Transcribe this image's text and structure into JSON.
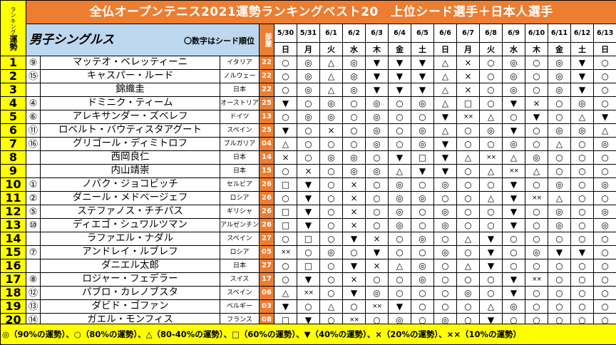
{
  "title": "全仏オープンテニス2021運勢ランキングベスト20　上位シード選手＋日本人選手",
  "rank_header": {
    "small": "ランキング",
    "big": "運勢"
  },
  "subtitle": "男子シングルス",
  "subtitle_note": "〇数字はシード順位",
  "room_header": "部屋",
  "dates": [
    "5/30",
    "5/31",
    "6/1",
    "6/2",
    "6/3",
    "6/4",
    "6/5",
    "6/6",
    "6/7",
    "6/8",
    "6/9",
    "6/10",
    "6/11",
    "6/12",
    "6/13"
  ],
  "weekdays": [
    "日",
    "月",
    "火",
    "水",
    "木",
    "金",
    "土",
    "日",
    "月",
    "火",
    "水",
    "木",
    "金",
    "土",
    "日"
  ],
  "players": [
    {
      "rank": "1",
      "seed": "⑨",
      "name": "マッテオ・ベレッティーニ",
      "country": "イタリア",
      "room": "22",
      "f": [
        "○",
        "◎",
        "△",
        "◎",
        "▼",
        "▼",
        "▼",
        "△",
        "×",
        "○",
        "◎",
        "○",
        "◎",
        "▼",
        "○"
      ]
    },
    {
      "rank": "2",
      "seed": "⑮",
      "name": "キャスパー・ルード",
      "country": "ノルウェー",
      "room": "22",
      "f": [
        "○",
        "◎",
        "△",
        "◎",
        "▼",
        "▼",
        "▼",
        "△",
        "×",
        "○",
        "◎",
        "○",
        "◎",
        "▼",
        "○"
      ]
    },
    {
      "rank": "3",
      "seed": "",
      "name": "錦織圭",
      "country": "日本",
      "room": "22",
      "f": [
        "○",
        "◎",
        "△",
        "◎",
        "▼",
        "▼",
        "▼",
        "△",
        "×",
        "○",
        "◎",
        "○",
        "◎",
        "▼",
        "○"
      ]
    },
    {
      "rank": "4",
      "seed": "④",
      "name": "ドミニク・ティーム",
      "country": "オーストリア",
      "room": "25",
      "f": [
        "▼",
        "○",
        "◎",
        "○",
        "◎",
        "○",
        "◎",
        "△",
        "□",
        "○",
        "▼",
        "×",
        "○",
        "◎",
        "○"
      ]
    },
    {
      "rank": "5",
      "seed": "⑥",
      "name": "アレキサンダー・ズベレフ",
      "country": "ドイツ",
      "room": "13",
      "f": [
        "○",
        "◎",
        "◎",
        "○",
        "◎",
        "○",
        "○",
        "▼",
        "××",
        "△",
        "○",
        "▼",
        "○",
        "△",
        "▼"
      ]
    },
    {
      "rank": "6",
      "seed": "⑪",
      "name": "ロベルト・バウティスタアグート",
      "country": "スペイン",
      "room": "25",
      "f": [
        "▼",
        "○",
        "×",
        "○",
        "◎",
        "○",
        "◎",
        "△",
        "○",
        "◎",
        "▼",
        "○",
        "◎",
        "◎",
        "△"
      ]
    },
    {
      "rank": "7",
      "seed": "⑯",
      "name": "グリゴール・ディミトロフ",
      "country": "ブルガリア",
      "room": "04",
      "f": [
        "△",
        "○",
        "○",
        "○",
        "◎",
        "○",
        "◎",
        "▼",
        "○",
        "○",
        "◎",
        "○",
        "△",
        "○",
        "◎"
      ]
    },
    {
      "rank": "8",
      "seed": "",
      "name": "西岡良仁",
      "country": "日本",
      "room": "14",
      "f": [
        "×",
        "○",
        "◎",
        "◎",
        "○",
        "▼",
        "□",
        "▼",
        "△",
        "××",
        "△",
        "◎",
        "○",
        "○",
        "○"
      ]
    },
    {
      "rank": "9",
      "seed": "",
      "name": "内山靖崇",
      "country": "日本",
      "room": "15",
      "f": [
        "○",
        "×",
        "○",
        "◎",
        "◎",
        "△",
        "▼",
        "▼",
        "○",
        "△",
        "××",
        "△",
        "○",
        "○",
        "○"
      ]
    },
    {
      "rank": "10",
      "seed": "①",
      "name": "ノバク・ジョコビッチ",
      "country": "セルビア",
      "room": "26",
      "f": [
        "□",
        "▼",
        "○",
        "×",
        "○",
        "◎",
        "○",
        "◎",
        "○",
        "○",
        "▼",
        "○",
        "◎",
        "○",
        "◎"
      ]
    },
    {
      "rank": "11",
      "seed": "②",
      "name": "ダニール・メドベージェフ",
      "country": "ロシア",
      "room": "26",
      "f": [
        "○",
        "▼",
        "○",
        "×",
        "○",
        "◎",
        "◎",
        "○",
        "○",
        "△",
        "▼",
        "××",
        "△",
        "○",
        "○"
      ]
    },
    {
      "rank": "12",
      "seed": "⑤",
      "name": "ステファノス・チチパス",
      "country": "ギリシャ",
      "room": "26",
      "f": [
        "□",
        "▼",
        "○",
        "×",
        "○",
        "◎",
        "○",
        "◎",
        "○",
        "○",
        "▼",
        "○",
        "◎",
        "○",
        "◎"
      ]
    },
    {
      "rank": "13",
      "seed": "⑩",
      "name": "ディエゴ・シュワルツマン",
      "country": "アルゼンチン",
      "room": "26",
      "f": [
        "□",
        "▼",
        "○",
        "×",
        "○",
        "◎",
        "○",
        "◎",
        "○",
        "○",
        "▼",
        "○",
        "◎",
        "○",
        "◎"
      ]
    },
    {
      "rank": "14",
      "seed": "",
      "name": "ラファエル・ナダル",
      "country": "スペイン",
      "room": "27",
      "f": [
        "○",
        "□",
        "○",
        "▼",
        "×",
        "○",
        "◎",
        "○",
        "△",
        "▼",
        "○",
        "○",
        "○",
        "○",
        "○"
      ]
    },
    {
      "rank": "15",
      "seed": "⑦",
      "name": "アンドレイ・ルブレフ",
      "country": "ロシア",
      "room": "05",
      "f": [
        "××",
        "○",
        "◎",
        "○",
        "▼",
        "○",
        "○",
        "◎",
        "○",
        "▼",
        "○",
        "◎",
        "▼",
        "▼",
        "○"
      ]
    },
    {
      "rank": "16",
      "seed": "",
      "name": "ダニエル太郎",
      "country": "日本",
      "room": "27",
      "f": [
        "○",
        "□",
        "○",
        "▼",
        "×",
        "△",
        "◎",
        "○",
        "△",
        "▼",
        "○",
        "○",
        "○",
        "○",
        "○"
      ]
    },
    {
      "rank": "17",
      "seed": "⑧",
      "name": "ロジャー・フェデラー",
      "country": "スイス",
      "room": "17",
      "f": [
        "○",
        "▼",
        "○",
        "×",
        "○",
        "○",
        "◎",
        "○",
        "○",
        "○",
        "▼",
        "××",
        "○",
        "○",
        "○"
      ]
    },
    {
      "rank": "18",
      "seed": "⑫",
      "name": "パブロ・カレノブスタ",
      "country": "スペイン",
      "room": "06",
      "f": [
        "△",
        "××",
        "○",
        "▼",
        "◎",
        "○",
        "○",
        "○",
        "◎",
        "○",
        "▼",
        "○",
        "○",
        "○",
        "○"
      ]
    },
    {
      "rank": "19",
      "seed": "⑬",
      "name": "ダビド・ゴファン",
      "country": "ベルギー",
      "room": "03",
      "f": [
        "▼",
        "○",
        "△",
        "○",
        "××",
        "▼",
        "○",
        "○",
        "○",
        "△",
        "◎",
        "○",
        "○",
        "○",
        "○"
      ]
    },
    {
      "rank": "20",
      "seed": "⑭",
      "name": "ガエル・モンフィス",
      "country": "フランス",
      "room": "08",
      "f": [
        "□",
        "▼",
        "○",
        "××",
        "○",
        "◎",
        "○",
        "◎",
        "○",
        "▼",
        "○",
        "○",
        "○",
        "○",
        "○"
      ]
    }
  ],
  "legend": "◎（90%の運勢）、○（80%の運勢）、△（80-40%の運勢）、□（60%の運勢）、▼（40%の運勢）、×（20%の運勢）、××（10%の運勢）"
}
